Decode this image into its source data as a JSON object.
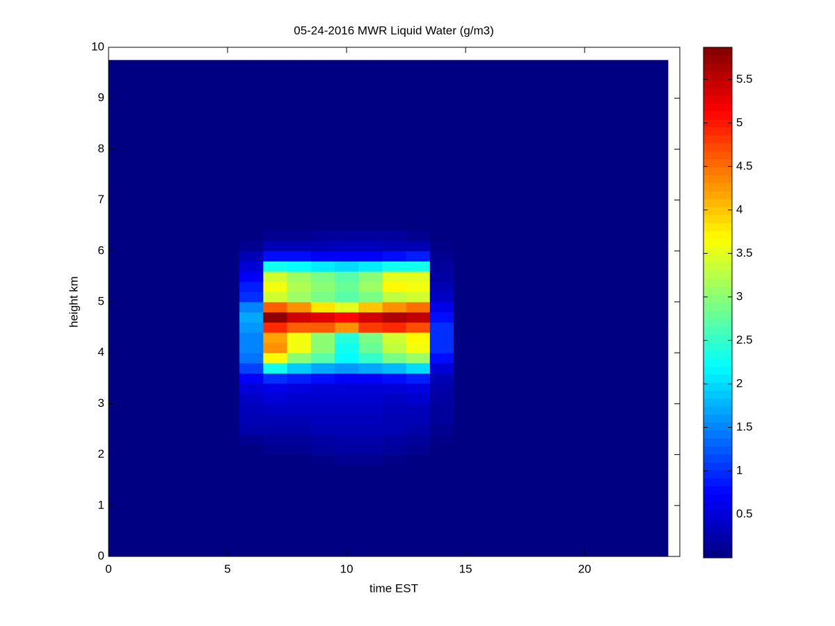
{
  "chart_data": {
    "type": "heatmap",
    "title": "05-24-2016 MWR Liquid Water (g/m3)",
    "x_label": "time EST",
    "y_label": "height km",
    "xlim": [
      0,
      24
    ],
    "ylim": [
      0,
      10
    ],
    "xticks": [
      0,
      5,
      10,
      15,
      20
    ],
    "yticks": [
      0,
      1,
      2,
      3,
      4,
      5,
      6,
      7,
      8,
      9,
      10
    ],
    "xbins": [
      0,
      5.5,
      6.5,
      7.5,
      8.5,
      9.5,
      10.5,
      11.5,
      12.5,
      13.5,
      14.5,
      23.5
    ],
    "ybins": [
      0,
      1.8,
      2.0,
      2.2,
      2.4,
      2.6,
      2.8,
      3.0,
      3.2,
      3.4,
      3.6,
      3.8,
      4.0,
      4.2,
      4.4,
      4.6,
      4.8,
      5.0,
      5.2,
      5.4,
      5.6,
      5.8,
      6.0,
      6.2,
      6.4,
      9.75
    ],
    "colormap": "jet",
    "clim": [
      0,
      5.87
    ],
    "colorbar_ticks": [
      0.5,
      1,
      1.5,
      2,
      2.5,
      3,
      3.5,
      4,
      4.5,
      5,
      5.5
    ],
    "values": [
      [
        0.02,
        0.02,
        0.02,
        0.02,
        0.02,
        0.02,
        0.02,
        0.02,
        0.02,
        0.02,
        0.02
      ],
      [
        0.02,
        0.02,
        0.02,
        0.02,
        0.05,
        0.1,
        0.1,
        0.05,
        0.02,
        0.02,
        0.02
      ],
      [
        0.02,
        0.02,
        0.1,
        0.1,
        0.15,
        0.2,
        0.2,
        0.15,
        0.1,
        0.02,
        0.02
      ],
      [
        0.02,
        0.1,
        0.15,
        0.15,
        0.2,
        0.25,
        0.25,
        0.2,
        0.15,
        0.05,
        0.02
      ],
      [
        0.02,
        0.25,
        0.25,
        0.25,
        0.3,
        0.3,
        0.3,
        0.3,
        0.25,
        0.1,
        0.02
      ],
      [
        0.02,
        0.3,
        0.3,
        0.3,
        0.35,
        0.35,
        0.35,
        0.3,
        0.3,
        0.15,
        0.02
      ],
      [
        0.02,
        0.35,
        0.4,
        0.4,
        0.4,
        0.4,
        0.4,
        0.35,
        0.35,
        0.15,
        0.02
      ],
      [
        0.02,
        0.4,
        0.5,
        0.45,
        0.45,
        0.45,
        0.45,
        0.4,
        0.45,
        0.2,
        0.02
      ],
      [
        0.02,
        0.5,
        0.6,
        0.55,
        0.5,
        0.5,
        0.5,
        0.5,
        0.55,
        0.25,
        0.02
      ],
      [
        0.02,
        0.7,
        1.0,
        0.9,
        0.8,
        0.7,
        0.7,
        0.8,
        0.9,
        0.3,
        0.02
      ],
      [
        0.02,
        1.1,
        2.3,
        1.9,
        1.7,
        1.6,
        1.7,
        1.8,
        2.0,
        0.5,
        0.02
      ],
      [
        0.02,
        1.4,
        3.7,
        3.0,
        2.7,
        2.2,
        2.5,
        2.9,
        3.1,
        0.8,
        0.02
      ],
      [
        0.02,
        1.5,
        4.3,
        3.6,
        3.0,
        2.3,
        2.8,
        3.3,
        3.6,
        1.0,
        0.02
      ],
      [
        0.02,
        1.5,
        4.2,
        3.6,
        3.0,
        2.4,
        2.9,
        3.4,
        3.7,
        1.0,
        0.02
      ],
      [
        0.02,
        1.6,
        4.9,
        4.6,
        4.6,
        4.3,
        4.8,
        4.9,
        4.7,
        1.0,
        0.02
      ],
      [
        0.02,
        1.7,
        5.8,
        5.4,
        5.3,
        5.1,
        5.4,
        5.6,
        5.5,
        0.8,
        0.02
      ],
      [
        0.02,
        1.5,
        4.6,
        4.3,
        3.8,
        3.5,
        4.0,
        4.3,
        4.5,
        0.6,
        0.02
      ],
      [
        0.02,
        1.0,
        3.4,
        3.1,
        2.9,
        2.7,
        2.9,
        3.3,
        3.4,
        0.4,
        0.02
      ],
      [
        0.02,
        0.9,
        3.6,
        3.2,
        3.0,
        2.8,
        3.1,
        3.7,
        3.6,
        0.3,
        0.02
      ],
      [
        0.02,
        0.7,
        3.4,
        3.1,
        2.9,
        2.7,
        3.0,
        3.5,
        3.5,
        0.2,
        0.02
      ],
      [
        0.02,
        0.5,
        2.3,
        2.2,
        2.1,
        2.0,
        2.1,
        2.3,
        2.3,
        0.15,
        0.02
      ],
      [
        0.02,
        0.3,
        0.8,
        0.8,
        0.7,
        0.7,
        0.7,
        0.8,
        0.9,
        0.1,
        0.02
      ],
      [
        0.02,
        0.1,
        0.3,
        0.3,
        0.3,
        0.35,
        0.35,
        0.3,
        0.3,
        0.05,
        0.02
      ],
      [
        0.02,
        0.02,
        0.1,
        0.1,
        0.15,
        0.15,
        0.15,
        0.15,
        0.1,
        0.02,
        0.02
      ],
      [
        0.02,
        0.02,
        0.02,
        0.02,
        0.02,
        0.02,
        0.02,
        0.02,
        0.02,
        0.02,
        0.02
      ]
    ]
  }
}
